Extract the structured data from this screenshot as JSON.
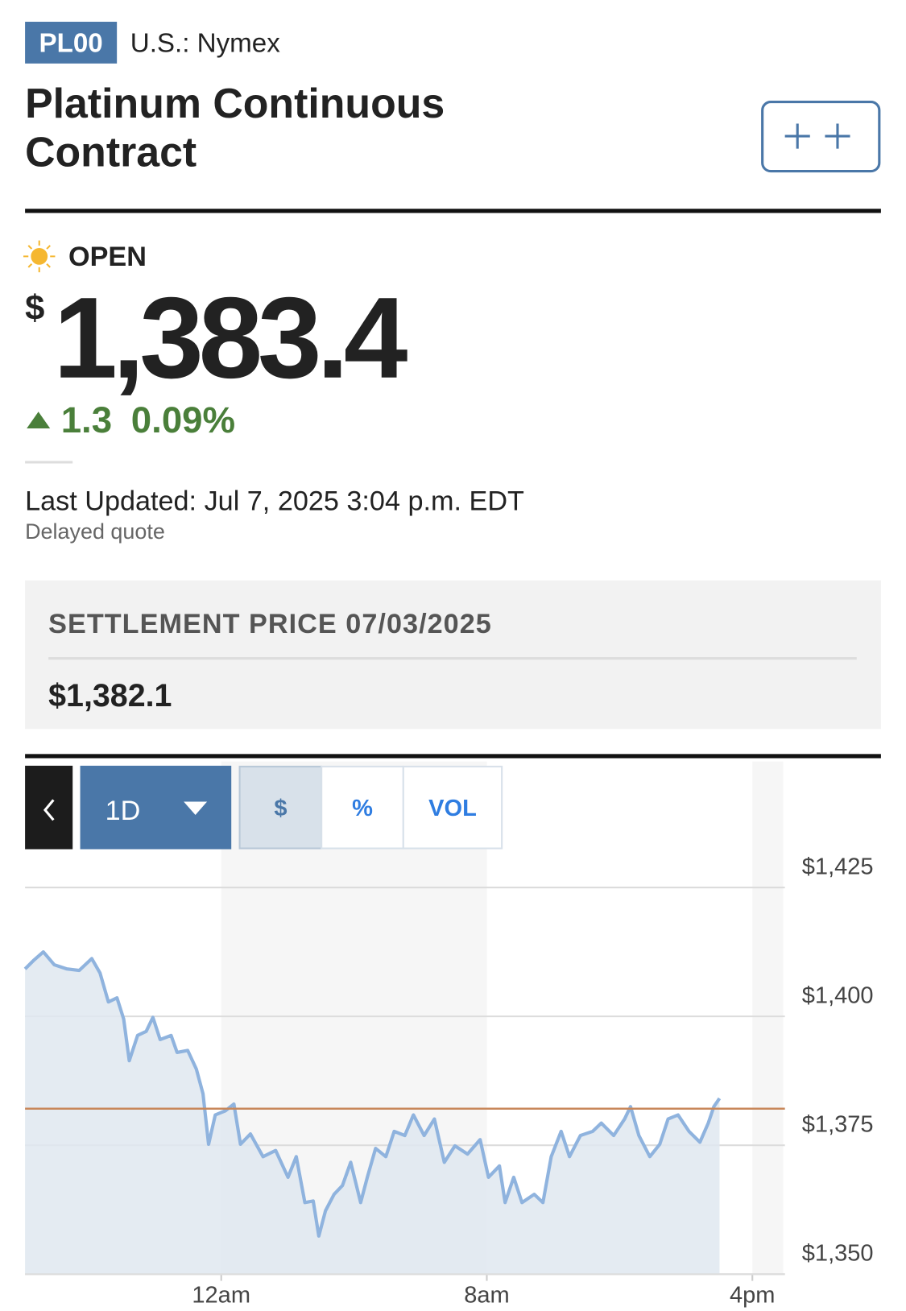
{
  "header": {
    "symbol": "PL00",
    "exchange": "U.S.: Nymex",
    "title_lines": [
      "Platinum Continuous",
      "Contract"
    ]
  },
  "quote": {
    "status": "OPEN",
    "currency": "$",
    "price": "1,383.4",
    "change": "1.3",
    "change_percent": "0.09%",
    "last_updated": "Last Updated: Jul 7, 2025 3:04 p.m. EDT",
    "delay": "Delayed quote"
  },
  "settlement": {
    "label": "SETTLEMENT PRICE 07/03/2025",
    "value": "$1,382.1"
  },
  "controls": {
    "range": "1D",
    "tabs": [
      "$",
      "%",
      "VOL"
    ]
  },
  "chart": {
    "type": "line",
    "color": "#8fb3de",
    "fill": "#dfe7f0",
    "reference_line": 1382.1,
    "reference_color": "#c8875a",
    "xlim": [
      -5.91,
      16.93
    ],
    "ylim": [
      1350,
      1429.5
    ],
    "xticks": [
      {
        "value": 0,
        "label": "12am"
      },
      {
        "value": 8,
        "label": "8am"
      },
      {
        "value": 16,
        "label": "4pm"
      }
    ],
    "yticks": [
      {
        "value": 1350,
        "label": "$1,350"
      },
      {
        "value": 1375,
        "label": "$1,375"
      },
      {
        "value": 1400,
        "label": "$1,400"
      },
      {
        "value": 1425,
        "label": "$1,425"
      }
    ],
    "x": [
      -5.91,
      -5.66,
      -5.36,
      -5.03,
      -4.65,
      -4.28,
      -3.9,
      -3.65,
      -3.4,
      -3.14,
      -2.94,
      -2.77,
      -2.52,
      -2.26,
      -2.06,
      -1.84,
      -1.51,
      -1.33,
      -1.01,
      -0.75,
      -0.55,
      -0.38,
      -0.18,
      0.13,
      0.38,
      0.58,
      0.88,
      1.26,
      1.64,
      2.01,
      2.26,
      2.52,
      2.77,
      2.94,
      3.14,
      3.4,
      3.65,
      3.9,
      4.2,
      4.4,
      4.65,
      4.96,
      5.21,
      5.53,
      5.79,
      6.11,
      6.42,
      6.72,
      7.04,
      7.42,
      7.8,
      8.05,
      8.38,
      8.55,
      8.81,
      9.06,
      9.43,
      9.69,
      9.94,
      10.24,
      10.49,
      10.82,
      11.19,
      11.45,
      11.82,
      12.15,
      12.33,
      12.58,
      12.91,
      13.21,
      13.46,
      13.76,
      14.09,
      14.42,
      14.67,
      14.84,
      15.01
    ],
    "values": [
      1409.2,
      1410.8,
      1412.5,
      1410.0,
      1409.2,
      1408.9,
      1411.2,
      1408.4,
      1402.8,
      1403.6,
      1399.5,
      1391.4,
      1396.3,
      1397.1,
      1399.8,
      1395.5,
      1396.3,
      1393.0,
      1393.4,
      1389.8,
      1385.0,
      1375.2,
      1380.9,
      1381.7,
      1383.0,
      1375.2,
      1377.2,
      1372.8,
      1374.0,
      1368.8,
      1372.8,
      1363.9,
      1364.2,
      1357.4,
      1362.3,
      1365.5,
      1367.2,
      1371.7,
      1363.9,
      1368.8,
      1374.4,
      1372.8,
      1377.7,
      1376.9,
      1380.9,
      1376.9,
      1380.1,
      1371.7,
      1374.9,
      1373.3,
      1376.1,
      1368.8,
      1371.0,
      1363.9,
      1368.8,
      1363.9,
      1365.5,
      1363.9,
      1372.8,
      1377.7,
      1372.8,
      1376.9,
      1377.7,
      1379.3,
      1376.9,
      1380.1,
      1382.5,
      1376.9,
      1372.8,
      1375.2,
      1380.1,
      1380.9,
      1377.7,
      1375.6,
      1379.3,
      1382.5,
      1384.1
    ]
  }
}
